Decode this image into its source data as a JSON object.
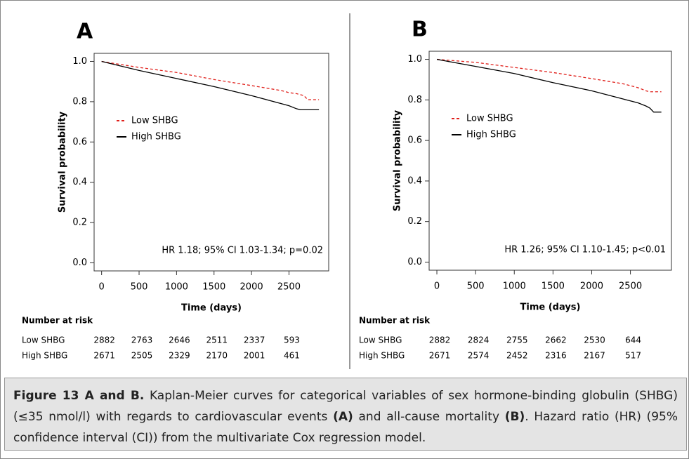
{
  "chart_data": [
    {
      "type": "line",
      "title": "A",
      "ylabel": "Survival probability",
      "xlabel": "Time (days)",
      "annotation": "HR 1.18; 95% CI 1.03-1.34; p=0.02",
      "x": [
        0,
        500,
        1000,
        1500,
        2000,
        2400,
        2500,
        2600,
        2650,
        2700,
        2750,
        2900
      ],
      "series": [
        {
          "name": "Low SHBG",
          "color": "#e0201b",
          "dashed": true,
          "values": [
            1,
            0.97,
            0.945,
            0.91,
            0.88,
            0.855,
            0.845,
            0.84,
            0.835,
            0.83,
            0.81,
            0.81
          ]
        },
        {
          "name": "High SHBG",
          "color": "#000000",
          "dashed": false,
          "values": [
            1,
            0.955,
            0.915,
            0.875,
            0.83,
            0.79,
            0.78,
            0.765,
            0.76,
            0.76,
            0.76,
            0.76
          ]
        }
      ],
      "xlim": [
        -100,
        3030
      ],
      "ylim": [
        -0.04,
        1.04
      ],
      "xticks": [
        0,
        500,
        1000,
        1500,
        2000,
        2500
      ],
      "yticks": [
        {
          "value": 0,
          "label": "0.0"
        },
        0.2,
        0.4,
        0.6,
        0.8,
        {
          "value": 1,
          "label": "1.0"
        }
      ],
      "risk_table": {
        "title": "Number at risk",
        "rows": [
          {
            "name": "Low SHBG",
            "values": [
              2882,
              2763,
              2646,
              2511,
              2337,
              593
            ]
          },
          {
            "name": "High SHBG",
            "values": [
              2671,
              2505,
              2329,
              2170,
              2001,
              461
            ]
          }
        ]
      }
    },
    {
      "type": "line",
      "title": "B",
      "ylabel": "Survival probability",
      "xlabel": "Time (days)",
      "annotation": "HR 1.26; 95% CI 1.10-1.45; p<0.01",
      "x": [
        0,
        500,
        1000,
        1500,
        2000,
        2400,
        2500,
        2600,
        2700,
        2750,
        2800,
        2900
      ],
      "series": [
        {
          "name": "Low SHBG",
          "color": "#e0201b",
          "dashed": true,
          "values": [
            1,
            0.985,
            0.96,
            0.935,
            0.905,
            0.88,
            0.87,
            0.86,
            0.845,
            0.84,
            0.84,
            0.84
          ]
        },
        {
          "name": "High SHBG",
          "color": "#000000",
          "dashed": false,
          "values": [
            1,
            0.965,
            0.93,
            0.885,
            0.845,
            0.805,
            0.795,
            0.785,
            0.77,
            0.76,
            0.74,
            0.74
          ]
        }
      ],
      "xlim": [
        -100,
        3030
      ],
      "ylim": [
        -0.04,
        1.04
      ],
      "xticks": [
        0,
        500,
        1000,
        1500,
        2000,
        2500
      ],
      "yticks": [
        {
          "value": 0,
          "label": "0.0"
        },
        0.2,
        0.4,
        0.6,
        0.8,
        {
          "value": 1,
          "label": "1.0"
        }
      ],
      "risk_table": {
        "title": "Number at risk",
        "rows": [
          {
            "name": "Low SHBG",
            "values": [
              2882,
              2824,
              2755,
              2662,
              2530,
              644
            ]
          },
          {
            "name": "High SHBG",
            "values": [
              2671,
              2574,
              2452,
              2316,
              2167,
              517
            ]
          }
        ]
      }
    }
  ],
  "caption": [
    {
      "text": "Figure 13 A and B.",
      "bold": true
    },
    {
      "text": " Kaplan-Meier curves for categorical variables of sex hormone-binding globulin (SHBG) (≤35 nmol/l) with regards to cardiovascular events ",
      "bold": false
    },
    {
      "text": "(A)",
      "bold": true
    },
    {
      "text": " and all-cause mortality ",
      "bold": false
    },
    {
      "text": "(B)",
      "bold": true
    },
    {
      "text": ". Hazard ratio (HR) (95% confidence interval (CI)) from the multivariate Cox regression model.",
      "bold": false
    }
  ]
}
